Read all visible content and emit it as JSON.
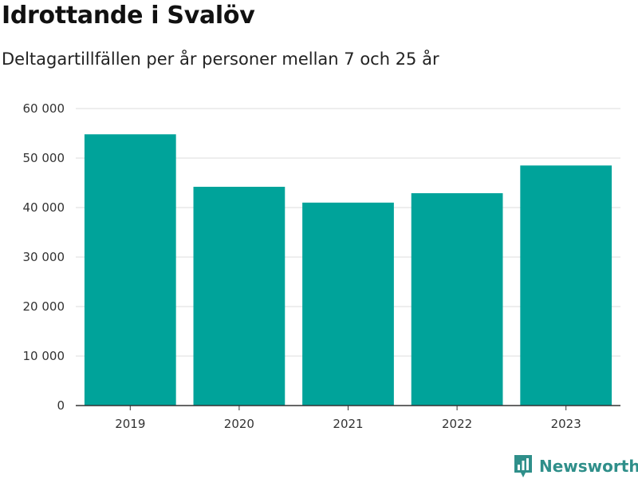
{
  "chart_data": {
    "type": "bar",
    "title": "Idrottande i Svalöv",
    "subtitle": "Deltagartillfällen per år personer mellan 7 och 25 år",
    "categories": [
      "2019",
      "2020",
      "2021",
      "2022",
      "2023"
    ],
    "values": [
      54800,
      44200,
      41000,
      42900,
      48500
    ],
    "ylim": [
      0,
      60000
    ],
    "yticks": [
      0,
      10000,
      20000,
      30000,
      40000,
      50000,
      60000
    ],
    "ytick_labels": [
      "0",
      "10 000",
      "20 000",
      "30 000",
      "40 000",
      "50 000",
      "60 000"
    ],
    "xlabel": "",
    "ylabel": "",
    "grid": true,
    "bar_color": "#00a39a",
    "grid_color": "#dcdcdc",
    "axis_color": "#333333"
  },
  "brand": {
    "name": "Newsworthy",
    "color": "#2f8f8a",
    "icon": "bar-chart-badge-icon"
  }
}
